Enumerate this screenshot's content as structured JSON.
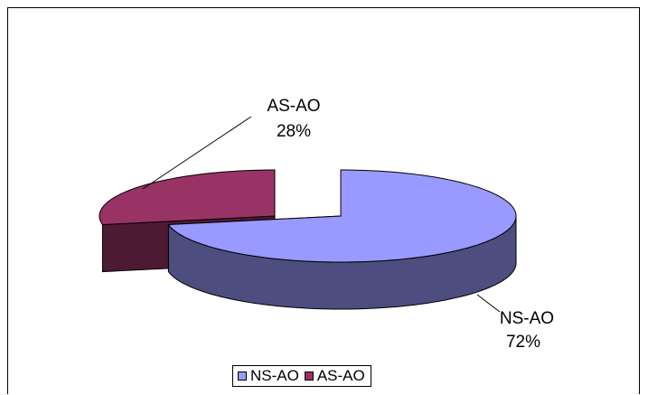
{
  "chart_data": {
    "type": "pie",
    "categories": [
      "NS-AO",
      "AS-AO"
    ],
    "values": [
      72,
      28
    ],
    "labels": [
      {
        "name": "NS-AO",
        "percent": "72%"
      },
      {
        "name": "AS-AO",
        "percent": "28%"
      }
    ],
    "colors": [
      "#9999ff",
      "#993366"
    ],
    "side_colors": [
      "#4d4d80",
      "#4d1a33"
    ],
    "legend_position": "bottom",
    "legend": [
      "NS-AO",
      "AS-AO"
    ],
    "style": "3d-exploded"
  }
}
